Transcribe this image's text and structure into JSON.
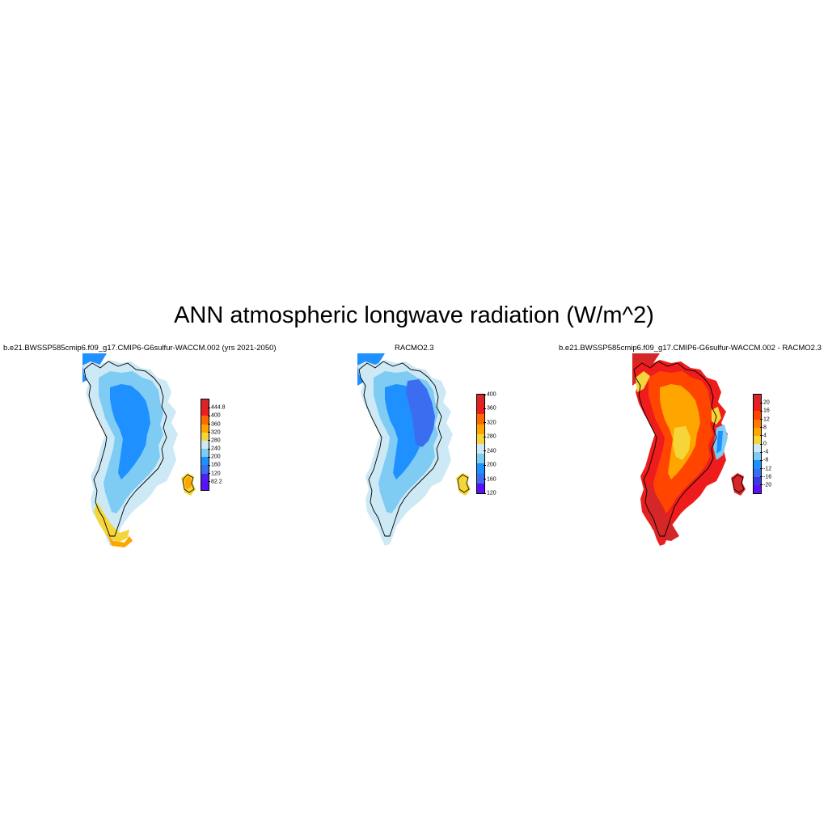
{
  "figure": {
    "title": "ANN atmospheric longwave radiation (W/m^2)"
  },
  "panels": [
    {
      "id": "model",
      "title": "b.e21.BWSSP585cmip6.f09_g17.CMIP6-G6sulfur-WACCM.002 (yrs 2021-2050)",
      "colorbar": {
        "labels": [
          "444.8",
          "400",
          "360",
          "320",
          "280",
          "240",
          "200",
          "160",
          "120",
          "82.2"
        ],
        "colors": [
          "#d62728",
          "#ee1c1c",
          "#ff6a00",
          "#ffa500",
          "#f5d63a",
          "#cde9f6",
          "#7ecbf3",
          "#1e90ff",
          "#3a6df0",
          "#4b20f0",
          "#5a0fff"
        ]
      }
    },
    {
      "id": "obs",
      "title": "RACMO2.3",
      "colorbar": {
        "labels": [
          "400",
          "360",
          "320",
          "280",
          "240",
          "200",
          "160",
          "120"
        ],
        "colors": [
          "#d62728",
          "#ee1c1c",
          "#ff6a00",
          "#ffa500",
          "#f5d63a",
          "#cde9f6",
          "#7ecbf3",
          "#1e90ff",
          "#3a6df0",
          "#5a0fff"
        ]
      }
    },
    {
      "id": "diff",
      "title": "b.e21.BWSSP585cmip6.f09_g17.CMIP6-G6sulfur-WACCM.002 - RACMO2.3",
      "colorbar": {
        "labels": [
          "20",
          "16",
          "12",
          "8",
          "4",
          "0",
          "-4",
          "-8",
          "-12",
          "-16",
          "-20"
        ],
        "colors": [
          "#d62728",
          "#ee1c1c",
          "#ff4500",
          "#ff7a00",
          "#ffa500",
          "#f5d63a",
          "#cde9f6",
          "#7ecbf3",
          "#1e90ff",
          "#3a6df0",
          "#3a3ae0",
          "#5a0fff"
        ]
      }
    }
  ]
}
